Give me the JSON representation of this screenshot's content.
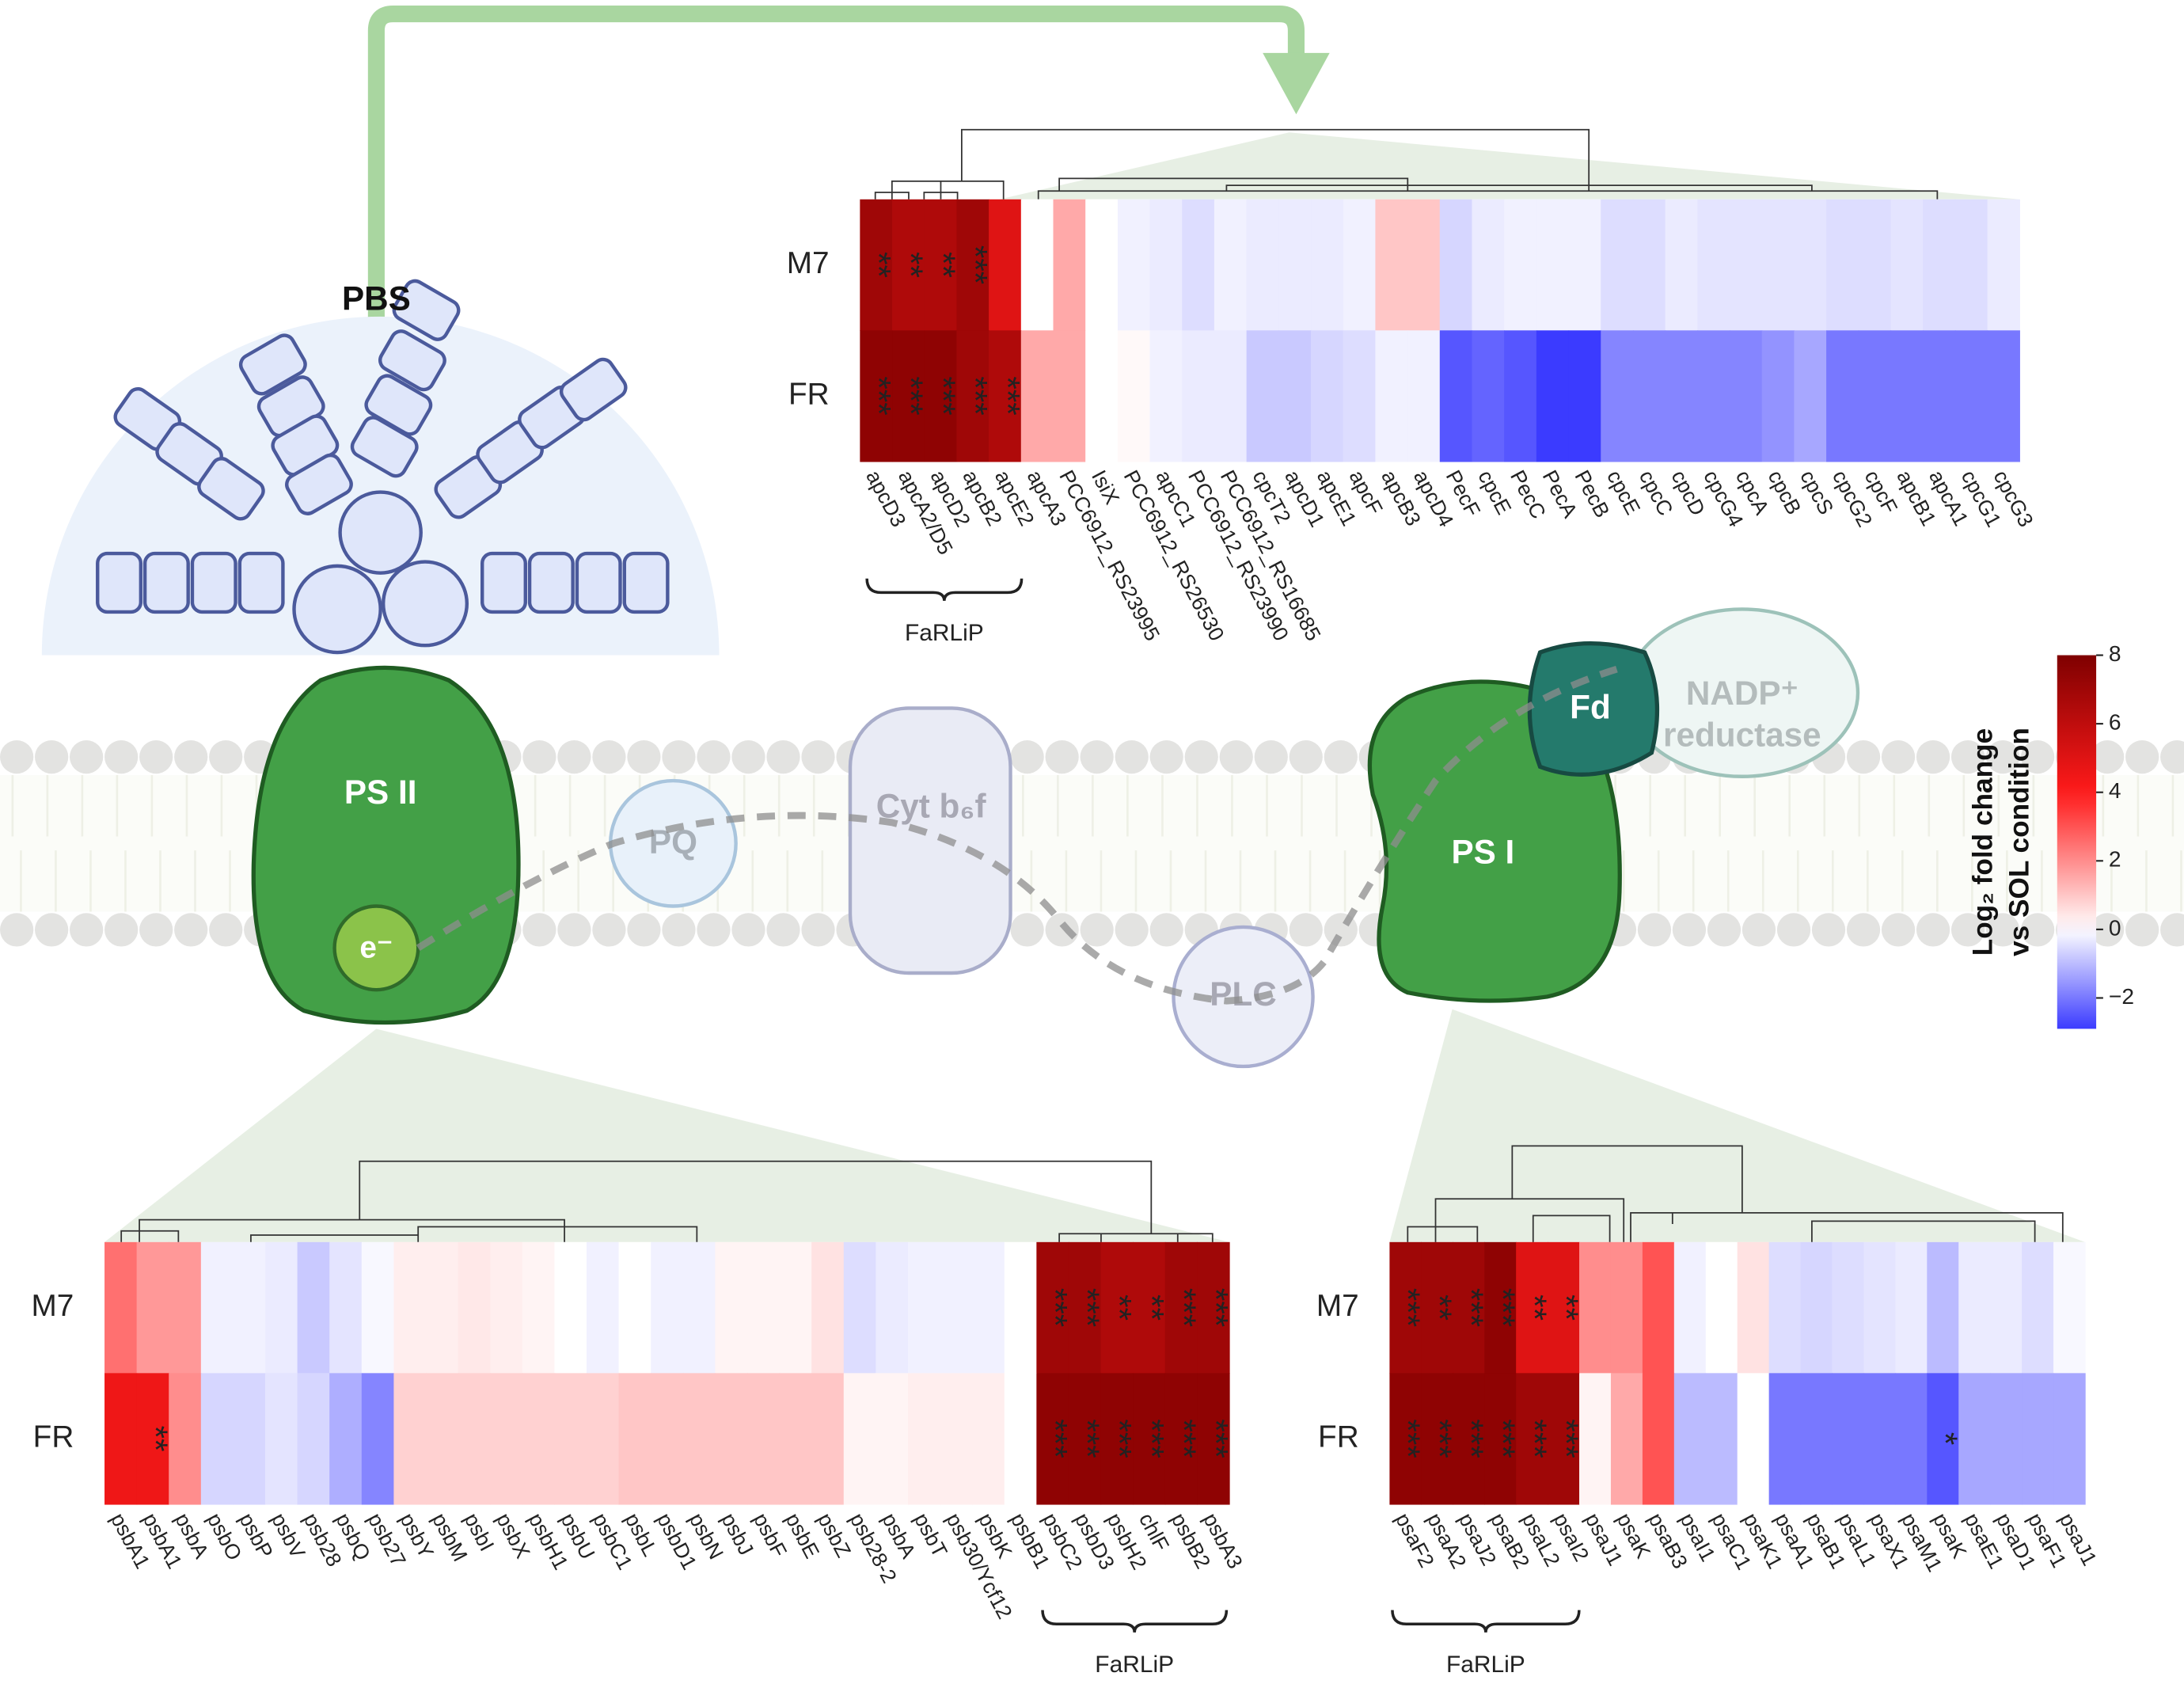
{
  "diagram": {
    "pbs": "PBS",
    "ps2": "PS II",
    "electron": "e⁻",
    "pq": "PQ",
    "cyt": "Cyt b₆f",
    "plc": "PLC",
    "ps1": "PS I",
    "fd": "Fd",
    "nadp": [
      "NADP⁺",
      "reductase"
    ]
  },
  "colorbar": {
    "label": [
      "Log₂ fold change",
      "vs SOL condition"
    ],
    "lim": [
      -2.9,
      8
    ],
    "ticks": [
      {
        "value": -2,
        "label": "−2"
      },
      0,
      2,
      4,
      6,
      8
    ],
    "colors": {
      "low": "#3b3bff",
      "zero": "#ffffff",
      "mid": "#ff1a1a",
      "high": "#7f0000"
    }
  },
  "chart_data": [
    {
      "type": "heatmap",
      "rows": [
        "M7",
        "FR"
      ],
      "annotation": "FaRLiP",
      "columns": [
        "apcD3",
        "apcA2/D5",
        "apcD2",
        "apcB2",
        "apcE2",
        "apcA3",
        "PCC6912_RS23995",
        "IsiX",
        "PCC6912_RS26530",
        "apcC1",
        "PCC6912_RS23990",
        "PCC6912_RS16685",
        "cpcT2",
        "apcD1",
        "apcE1",
        "apcF",
        "apcB3",
        "apcD4",
        "PecF",
        "cpcE",
        "PecC",
        "PecA",
        "PecB",
        "cpcE",
        "cpcC",
        "cpcD",
        "cpcG4",
        "cpcA",
        "cpcB",
        "cpcS",
        "cpcG2",
        "cpcF",
        "apcB1",
        "apcA1",
        "cpcG1",
        "cpcG3"
      ],
      "values": [
        [
          7,
          6.5,
          6.5,
          7,
          5,
          0,
          1.5,
          0,
          -0.2,
          -0.3,
          -0.5,
          -0.2,
          -0.3,
          -0.3,
          -0.3,
          -0.2,
          1,
          1,
          -0.6,
          -0.3,
          -0.2,
          -0.2,
          -0.2,
          -0.5,
          -0.5,
          -0.3,
          -0.4,
          -0.4,
          -0.4,
          -0.4,
          -0.5,
          -0.5,
          -0.4,
          -0.5,
          -0.5,
          -0.3
        ],
        [
          7.5,
          7.5,
          7.5,
          7,
          6.5,
          1.5,
          1.5,
          0,
          0.1,
          -0.2,
          -0.3,
          -0.3,
          -0.8,
          -0.8,
          -0.6,
          -0.5,
          -0.2,
          -0.2,
          -2.5,
          -2.3,
          -2.5,
          -3,
          -3,
          -1.8,
          -1.8,
          -1.8,
          -1.8,
          -1.8,
          -1.6,
          -1.3,
          -2,
          -2,
          -2,
          -2,
          -2,
          -2
        ]
      ],
      "stars": [
        [
          "**",
          "**",
          "**",
          "***",
          null,
          null,
          null,
          null,
          null,
          null,
          null,
          null,
          null,
          null,
          null,
          null,
          null,
          null,
          null,
          null,
          null,
          null,
          null,
          null,
          null,
          null,
          null,
          null,
          null,
          null,
          null,
          null,
          null,
          null,
          null,
          null
        ],
        [
          "***",
          "***",
          "***",
          "***",
          "***",
          null,
          null,
          null,
          null,
          null,
          null,
          null,
          null,
          null,
          null,
          null,
          null,
          null,
          null,
          null,
          null,
          null,
          null,
          null,
          null,
          null,
          null,
          null,
          null,
          null,
          null,
          null,
          null,
          null,
          null,
          null
        ]
      ]
    },
    {
      "type": "heatmap",
      "rows": [
        "M7",
        "FR"
      ],
      "annotation": "FaRLiP",
      "columns": [
        "psbA1",
        "psbA1",
        "psbA",
        "psbO",
        "psbP",
        "psbV",
        "psb28",
        "psbQ",
        "psb27",
        "psbY",
        "psbM",
        "psbI",
        "psbX",
        "psbH1",
        "psbU",
        "psbC1",
        "psbL",
        "psbD1",
        "psbN",
        "psbJ",
        "psbF",
        "psbE",
        "psbZ",
        "psb28-2",
        "psbA",
        "psbT",
        "psb30/Ycf12",
        "psbK",
        "psbB1",
        "psbC2",
        "psbD3",
        "psbH2",
        "chlF",
        "psbB2",
        "psbA3"
      ],
      "values": [
        [
          2.5,
          1.8,
          1.8,
          -0.2,
          -0.2,
          -0.3,
          -0.8,
          -0.4,
          -0.1,
          0.3,
          0.3,
          0.4,
          0.3,
          0.2,
          0,
          -0.2,
          0,
          -0.2,
          -0.2,
          0.2,
          0.2,
          0.2,
          0.5,
          -0.5,
          -0.3,
          -0.2,
          -0.2,
          -0.2,
          0,
          7,
          7,
          6.5,
          6.5,
          7,
          7
        ],
        [
          4.5,
          4.5,
          2,
          -0.6,
          -0.6,
          -0.4,
          -0.6,
          -1.2,
          -1.8,
          0.8,
          0.8,
          0.8,
          0.8,
          0.8,
          0.8,
          0.8,
          1,
          1,
          1,
          1,
          1,
          1,
          1,
          0.2,
          0.2,
          0.3,
          0.3,
          0.3,
          0,
          7.5,
          7.5,
          7.5,
          7.5,
          7.5,
          7.5
        ]
      ],
      "stars": [
        [
          null,
          null,
          null,
          null,
          null,
          null,
          null,
          null,
          null,
          null,
          null,
          null,
          null,
          null,
          null,
          null,
          null,
          null,
          null,
          null,
          null,
          null,
          null,
          null,
          null,
          null,
          null,
          null,
          null,
          "***",
          "***",
          "**",
          "**",
          "***",
          "***"
        ],
        [
          null,
          "**",
          null,
          null,
          null,
          null,
          null,
          null,
          null,
          null,
          null,
          null,
          null,
          null,
          null,
          null,
          null,
          null,
          null,
          null,
          null,
          null,
          null,
          null,
          null,
          null,
          null,
          null,
          null,
          "***",
          "***",
          "***",
          "***",
          "***",
          "***"
        ]
      ]
    },
    {
      "type": "heatmap",
      "rows": [
        "M7",
        "FR"
      ],
      "annotation": "FaRLiP",
      "columns": [
        "psaF2",
        "psaA2",
        "psaJ2",
        "psaB2",
        "psaL2",
        "psaI2",
        "psaJ1",
        "psaK",
        "psaB3",
        "psaI1",
        "psaC1",
        "psaK1",
        "psaA1",
        "psaB1",
        "psaL1",
        "psaX1",
        "psaM1",
        "psaK",
        "psaE1",
        "psaD1",
        "psaF1",
        "psaJ1"
      ],
      "values": [
        [
          7,
          7,
          7,
          7.5,
          5,
          5,
          2,
          2,
          3,
          -0.2,
          0,
          0.5,
          -0.5,
          -0.6,
          -0.5,
          -0.4,
          -0.3,
          -1,
          -0.3,
          -0.3,
          -0.5,
          -0.1
        ],
        [
          7.5,
          7.5,
          7.5,
          7.5,
          7,
          7,
          0.2,
          1.5,
          3,
          -1,
          -1,
          0,
          -2,
          -2,
          -2,
          -2,
          -2,
          -2.5,
          -1.3,
          -1.3,
          -1.3,
          -1.3
        ]
      ],
      "stars": [
        [
          "***",
          "**",
          "***",
          "***",
          "**",
          "**",
          null,
          null,
          null,
          null,
          null,
          null,
          null,
          null,
          null,
          null,
          null,
          null,
          null,
          null,
          null,
          null
        ],
        [
          "***",
          "***",
          "***",
          "***",
          "***",
          "***",
          null,
          null,
          null,
          null,
          null,
          null,
          null,
          null,
          null,
          null,
          null,
          "*",
          null,
          null,
          null,
          null
        ]
      ]
    }
  ]
}
